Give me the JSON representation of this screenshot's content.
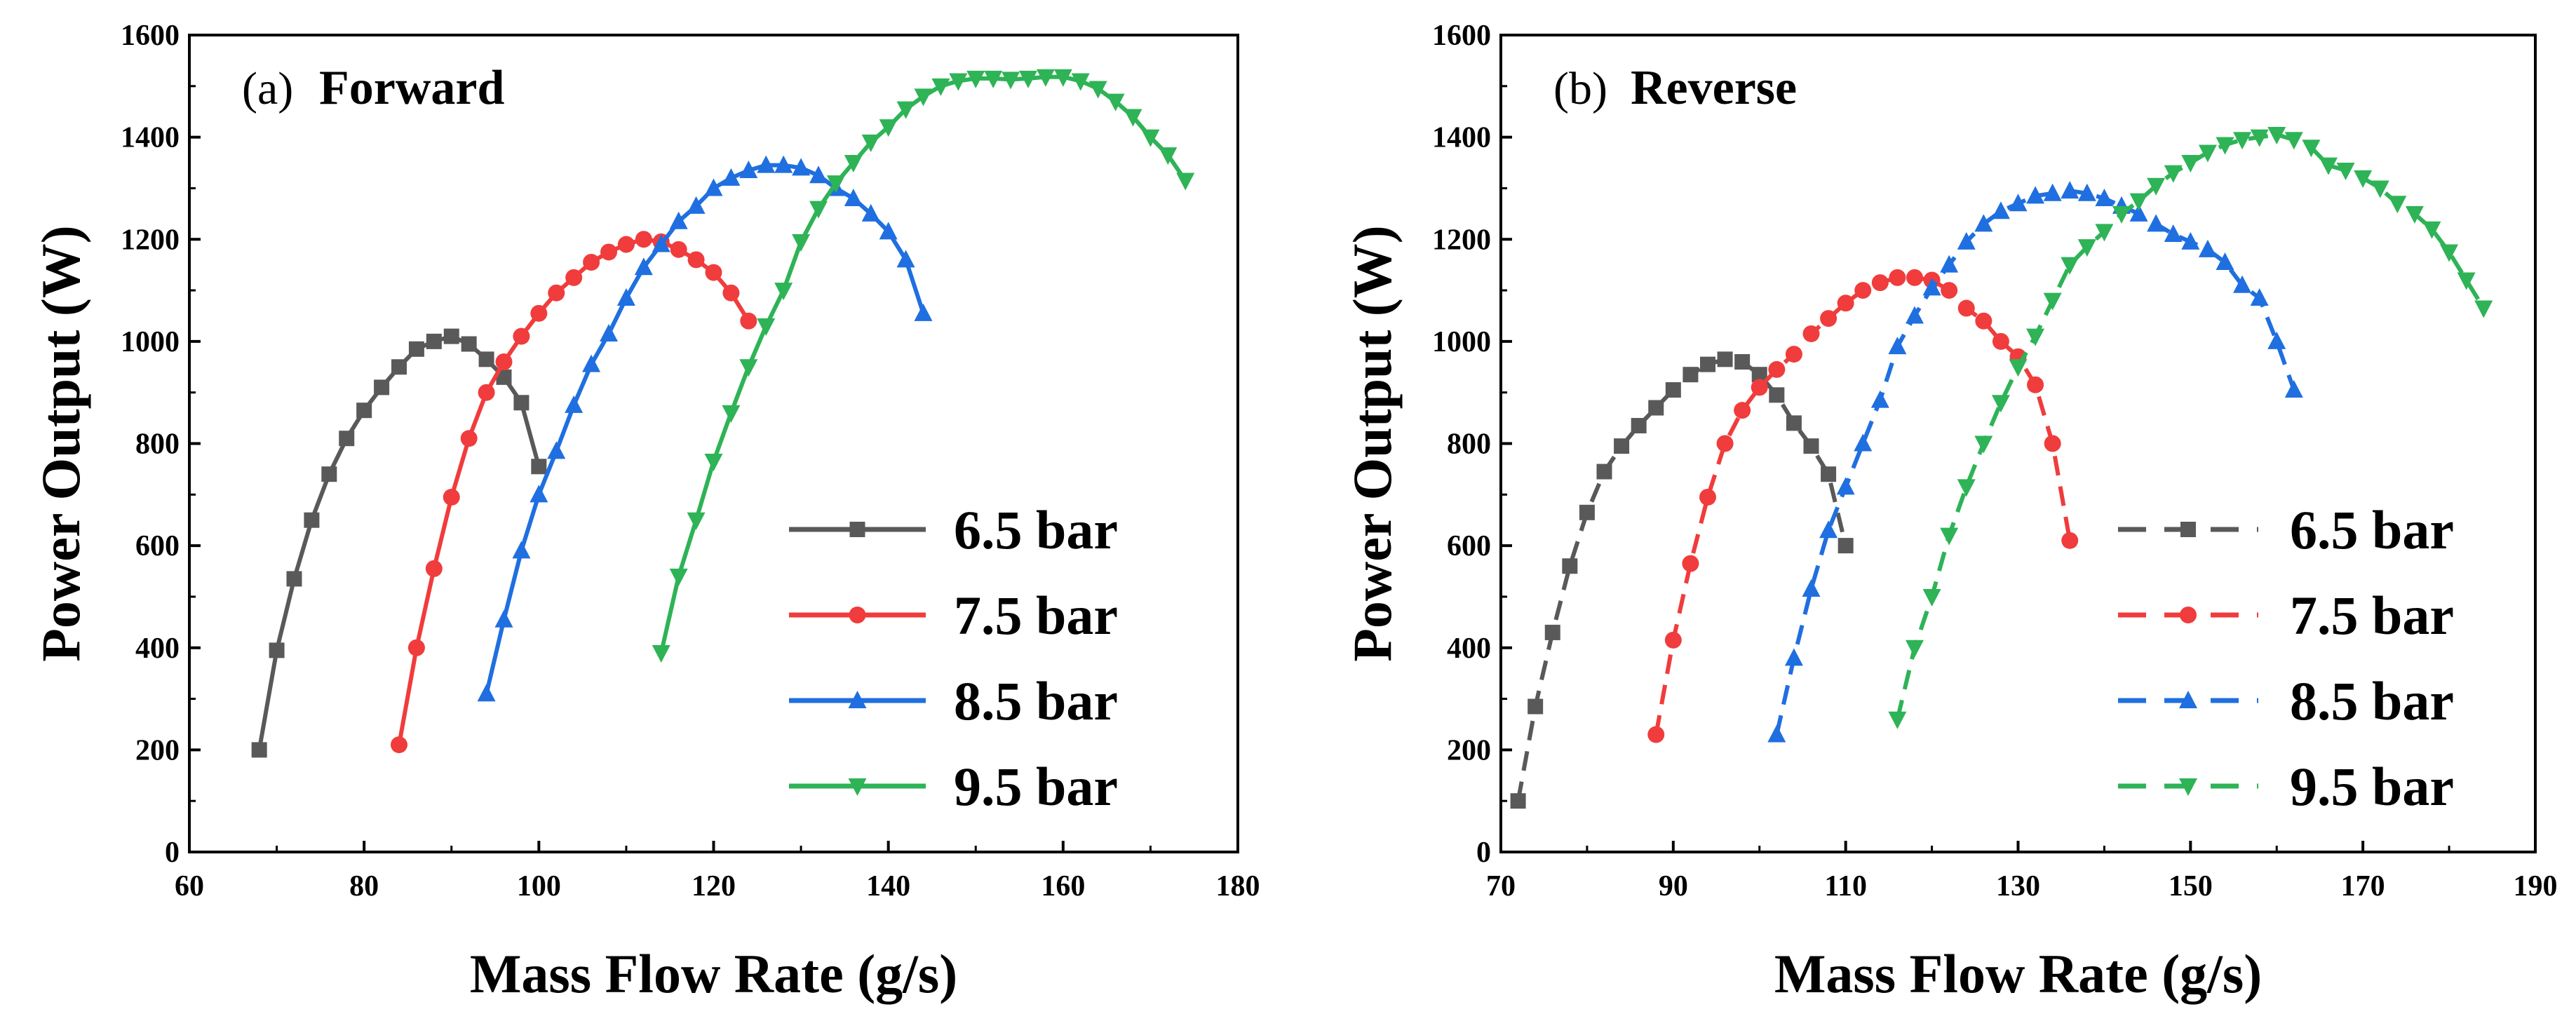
{
  "chart_data": [
    {
      "type": "line",
      "panel_label": "(a)",
      "title": "Forward",
      "xlabel": "Mass Flow Rate (g/s)",
      "ylabel": "Power Output (W)",
      "xlim": [
        60,
        180
      ],
      "ylim": [
        0,
        1600
      ],
      "x_ticks": [
        60,
        80,
        100,
        120,
        140,
        160,
        180
      ],
      "x_tick_labels": [
        "60",
        "80",
        "100",
        "120",
        "140",
        "160",
        "180"
      ],
      "y_ticks": [
        0,
        200,
        400,
        600,
        800,
        1000,
        1200,
        1400,
        1600
      ],
      "y_tick_labels": [
        "0",
        "200",
        "400",
        "600",
        "800",
        "1000",
        "1200",
        "1400",
        "1600"
      ],
      "grid": false,
      "legend_position": "bottom-right",
      "series": [
        {
          "name": "6.5 bar",
          "color": "#595959",
          "marker": "square",
          "dashed": false,
          "x": [
            68,
            70,
            72,
            74,
            76,
            78,
            80,
            82,
            84,
            86,
            88,
            90,
            92,
            94,
            96,
            98,
            100
          ],
          "y": [
            200,
            395,
            535,
            650,
            740,
            810,
            865,
            910,
            950,
            985,
            1000,
            1010,
            995,
            965,
            930,
            880,
            755
          ]
        },
        {
          "name": "7.5 bar",
          "color": "#f03c3c",
          "marker": "circle",
          "dashed": false,
          "x": [
            84,
            86,
            88,
            90,
            92,
            94,
            96,
            98,
            100,
            102,
            104,
            106,
            108,
            110,
            112,
            114,
            116,
            118,
            120,
            122,
            124
          ],
          "y": [
            210,
            400,
            555,
            695,
            810,
            900,
            960,
            1010,
            1055,
            1095,
            1125,
            1155,
            1175,
            1190,
            1200,
            1195,
            1180,
            1160,
            1135,
            1095,
            1040
          ]
        },
        {
          "name": "8.5 bar",
          "color": "#1f6fe0",
          "marker": "triangle-up",
          "dashed": false,
          "x": [
            94,
            96,
            98,
            100,
            102,
            104,
            106,
            108,
            110,
            112,
            114,
            116,
            118,
            120,
            122,
            124,
            126,
            128,
            130,
            132,
            134,
            136,
            138,
            140,
            142,
            144
          ],
          "y": [
            310,
            455,
            590,
            700,
            785,
            875,
            955,
            1015,
            1085,
            1145,
            1190,
            1235,
            1265,
            1300,
            1320,
            1335,
            1345,
            1345,
            1340,
            1325,
            1300,
            1280,
            1250,
            1215,
            1160,
            1055
          ]
        },
        {
          "name": "9.5 bar",
          "color": "#2eb356",
          "marker": "triangle-down",
          "dashed": false,
          "x": [
            114,
            116,
            118,
            120,
            122,
            124,
            126,
            128,
            130,
            132,
            134,
            136,
            138,
            140,
            142,
            144,
            146,
            148,
            150,
            152,
            154,
            156,
            158,
            160,
            162,
            164,
            166,
            168,
            170,
            172,
            174
          ],
          "y": [
            390,
            540,
            650,
            765,
            860,
            950,
            1030,
            1100,
            1195,
            1260,
            1310,
            1350,
            1390,
            1420,
            1455,
            1480,
            1500,
            1510,
            1515,
            1515,
            1513,
            1515,
            1518,
            1518,
            1510,
            1495,
            1470,
            1440,
            1400,
            1365,
            1315
          ]
        }
      ]
    },
    {
      "type": "line",
      "panel_label": "(b)",
      "title": "Reverse",
      "xlabel": "Mass Flow Rate (g/s)",
      "ylabel": "Power Output (W)",
      "xlim": [
        70,
        190
      ],
      "ylim": [
        0,
        1600
      ],
      "x_ticks": [
        70,
        90,
        110,
        130,
        150,
        170,
        190
      ],
      "x_tick_labels": [
        "70",
        "90",
        "110",
        "130",
        "150",
        "170",
        "190"
      ],
      "y_ticks": [
        0,
        200,
        400,
        600,
        800,
        1000,
        1200,
        1400,
        1600
      ],
      "y_tick_labels": [
        "0",
        "200",
        "400",
        "600",
        "800",
        "1000",
        "1200",
        "1400",
        "1600"
      ],
      "grid": false,
      "legend_position": "bottom-right",
      "series": [
        {
          "name": "6.5 bar",
          "color": "#595959",
          "marker": "square",
          "dashed": true,
          "x": [
            72,
            74,
            76,
            78,
            80,
            82,
            84,
            86,
            88,
            90,
            92,
            94,
            96,
            98,
            100,
            102,
            104,
            106,
            108,
            110
          ],
          "y": [
            100,
            285,
            430,
            560,
            665,
            745,
            795,
            835,
            870,
            905,
            935,
            955,
            965,
            960,
            935,
            895,
            840,
            795,
            740,
            600
          ]
        },
        {
          "name": "7.5 bar",
          "color": "#f03c3c",
          "marker": "circle",
          "dashed": true,
          "x": [
            88,
            90,
            92,
            94,
            96,
            98,
            100,
            102,
            104,
            106,
            108,
            110,
            112,
            114,
            116,
            118,
            120,
            122,
            124,
            126,
            128,
            130,
            132,
            134,
            136
          ],
          "y": [
            230,
            415,
            565,
            695,
            800,
            865,
            910,
            945,
            975,
            1015,
            1045,
            1075,
            1100,
            1115,
            1125,
            1125,
            1120,
            1100,
            1065,
            1040,
            1000,
            970,
            915,
            800,
            610
          ]
        },
        {
          "name": "8.5 bar",
          "color": "#1f6fe0",
          "marker": "triangle-up",
          "dashed": true,
          "x": [
            102,
            104,
            106,
            108,
            110,
            112,
            114,
            116,
            118,
            120,
            122,
            124,
            126,
            128,
            130,
            132,
            134,
            136,
            138,
            140,
            142,
            144,
            146,
            148,
            150,
            152,
            154,
            156,
            158,
            160,
            162
          ],
          "y": [
            230,
            380,
            515,
            630,
            715,
            800,
            885,
            990,
            1050,
            1105,
            1150,
            1195,
            1230,
            1255,
            1270,
            1285,
            1290,
            1295,
            1290,
            1280,
            1265,
            1250,
            1230,
            1210,
            1195,
            1180,
            1155,
            1110,
            1085,
            1000,
            905
          ]
        },
        {
          "name": "9.5 bar",
          "color": "#2eb356",
          "marker": "triangle-down",
          "dashed": true,
          "x": [
            116,
            118,
            120,
            122,
            124,
            126,
            128,
            130,
            132,
            134,
            136,
            138,
            140,
            142,
            144,
            146,
            148,
            150,
            152,
            154,
            156,
            158,
            160,
            162,
            164,
            166,
            168,
            170,
            172,
            174,
            176,
            178,
            180,
            182,
            184
          ],
          "y": [
            260,
            400,
            500,
            620,
            715,
            800,
            880,
            950,
            1010,
            1080,
            1150,
            1185,
            1215,
            1250,
            1275,
            1305,
            1330,
            1350,
            1370,
            1385,
            1395,
            1400,
            1405,
            1395,
            1380,
            1345,
            1335,
            1320,
            1300,
            1270,
            1250,
            1220,
            1175,
            1120,
            1065
          ]
        }
      ]
    }
  ]
}
